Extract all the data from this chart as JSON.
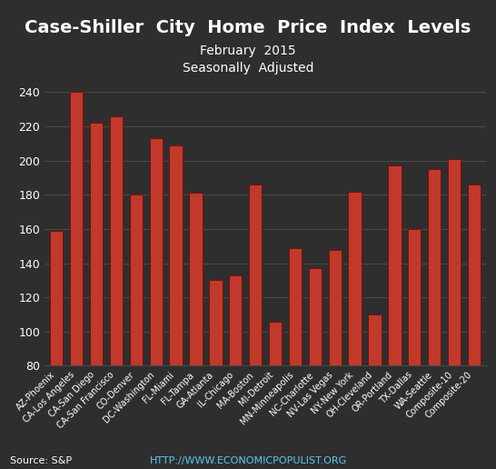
{
  "title": "Case-Shiller  City  Home  Price  Index  Levels",
  "subtitle": "February  2015",
  "subtitle2": "Seasonally  Adjusted",
  "source": "Source: S&P",
  "url": "HTTP://WWW.ECONOMICPOPULIST.ORG",
  "categories": [
    "AZ-Phoenix",
    "CA-Los Angeles",
    "CA-San Diego",
    "CA-San Francisco",
    "CO-Denver",
    "DC-Washington",
    "FL-Miami",
    "FL-Tampa",
    "GA-Atlanta",
    "IL-Chicago",
    "MA-Boston",
    "MI-Detroit",
    "MN-Minneapolis",
    "NC-Charlotte",
    "NV-Las Vegas",
    "NY-New York",
    "OH-Cleveland",
    "OR-Portland",
    "TX-Dallas",
    "WA-Seattle",
    "Composite-10",
    "Composite-20"
  ],
  "values": [
    159,
    240,
    222,
    226,
    180,
    213,
    209,
    181,
    130,
    133,
    186,
    106,
    149,
    137,
    148,
    182,
    110,
    197,
    160,
    195,
    201,
    186
  ],
  "bar_color": "#c0392b",
  "bar_edge_color": "#7a0000",
  "background_color": "#2e2e2e",
  "text_color": "#ffffff",
  "grid_color": "#555555",
  "ylim": [
    80,
    250
  ],
  "yticks": [
    80,
    100,
    120,
    140,
    160,
    180,
    200,
    220,
    240
  ],
  "title_fontsize": 14,
  "subtitle_fontsize": 10,
  "label_fontsize": 7,
  "tick_fontsize": 9
}
